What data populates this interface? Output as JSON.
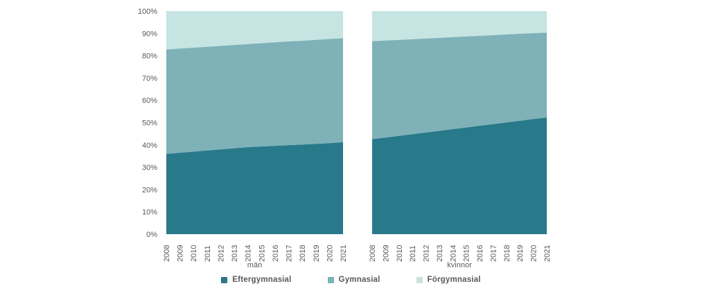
{
  "chart_data": {
    "type": "area",
    "variant": "stacked-100-percent",
    "title": "",
    "xlabel": "",
    "ylabel": "",
    "x": [
      "2008",
      "2009",
      "2010",
      "2011",
      "2012",
      "2013",
      "2014",
      "2015",
      "2016",
      "2017",
      "2018",
      "2019",
      "2020",
      "2021"
    ],
    "ylim": [
      0,
      100
    ],
    "yticks": [
      "0%",
      "10%",
      "20%",
      "30%",
      "40%",
      "50%",
      "60%",
      "70%",
      "80%",
      "90%",
      "100%"
    ],
    "grid": false,
    "legend_position": "bottom",
    "panels": [
      {
        "label": "män",
        "series": [
          {
            "name": "Eftergymnasial",
            "color": "#28798a",
            "values": [
              36.0,
              36.5,
              37.0,
              37.5,
              38.0,
              38.5,
              39.0,
              39.3,
              39.6,
              39.9,
              40.2,
              40.5,
              40.8,
              41.2
            ]
          },
          {
            "name": "Gymnasial",
            "color": "#7eb1b8",
            "values": [
              46.8,
              46.7,
              46.6,
              46.5,
              46.4,
              46.3,
              46.2,
              46.3,
              46.4,
              46.5,
              46.5,
              46.6,
              46.7,
              46.6
            ]
          },
          {
            "name": "Förgymnasial",
            "color": "#c6e4e2",
            "values": [
              17.2,
              16.8,
              16.4,
              16.0,
              15.6,
              15.2,
              14.8,
              14.4,
              14.0,
              13.6,
              13.3,
              12.9,
              12.5,
              12.2
            ]
          }
        ]
      },
      {
        "label": "kvinnor",
        "series": [
          {
            "name": "Eftergymnasial",
            "color": "#28798a",
            "values": [
              42.6,
              43.3,
              44.1,
              44.8,
              45.6,
              46.3,
              47.1,
              47.8,
              48.6,
              49.3,
              50.1,
              50.8,
              51.6,
              52.3
            ]
          },
          {
            "name": "Gymnasial",
            "color": "#7eb1b8",
            "values": [
              43.9,
              43.5,
              43.0,
              42.6,
              42.1,
              41.7,
              41.2,
              40.8,
              40.3,
              39.9,
              39.4,
              39.0,
              38.5,
              38.0
            ]
          },
          {
            "name": "Förgymnasial",
            "color": "#c6e4e2",
            "values": [
              13.5,
              13.2,
              12.9,
              12.6,
              12.3,
              12.0,
              11.7,
              11.4,
              11.1,
              10.8,
              10.5,
              10.2,
              9.9,
              9.7
            ]
          }
        ]
      }
    ]
  },
  "legend": {
    "items": [
      {
        "label": "Eftergymnasial",
        "color": "#28798a"
      },
      {
        "label": "Gymnasial",
        "color": "#7eb1b8"
      },
      {
        "label": "Förgymnasial",
        "color": "#c6e4e2"
      }
    ]
  },
  "colors": {
    "axis_text": "#595959",
    "background": "#ffffff"
  }
}
